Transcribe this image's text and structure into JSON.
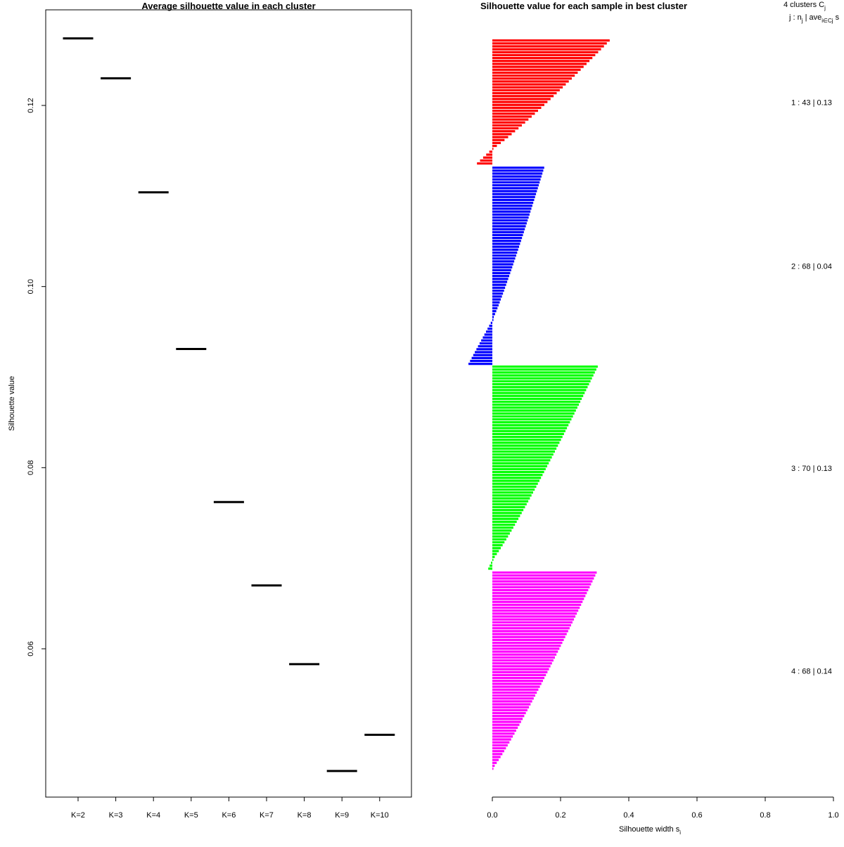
{
  "chart_data": [
    {
      "type": "scatter",
      "title": "Average silhouette value in each cluster",
      "xlabel": "",
      "ylabel": "Silhouette value",
      "categories": [
        "K=2",
        "K=3",
        "K=4",
        "K=5",
        "K=6",
        "K=7",
        "K=8",
        "K=9",
        "K=10"
      ],
      "values": [
        0.1274,
        0.123,
        0.1104,
        0.0931,
        0.0762,
        0.067,
        0.0583,
        0.0465,
        0.0505
      ],
      "y_ticks": [
        0.06,
        0.08,
        0.1,
        0.12
      ],
      "y_tick_labels": [
        "0.06",
        "0.08",
        "0.10",
        "0.12"
      ],
      "ylim": [
        0.0455,
        0.1305
      ],
      "grid": false,
      "mark": "horizontal-segment"
    },
    {
      "type": "bar",
      "orientation": "horizontal",
      "title": "Silhouette value for each sample in best cluster",
      "xlabel": "Silhouette width s",
      "xlabel_subscript": "i",
      "xlim": [
        0,
        1
      ],
      "x_ticks": [
        0.0,
        0.2,
        0.4,
        0.6,
        0.8,
        1.0
      ],
      "x_tick_labels": [
        "0.0",
        "0.2",
        "0.4",
        "0.6",
        "0.8",
        "1.0"
      ],
      "legend_header": {
        "line1": "4  clusters  C",
        "line1_sub": "j",
        "line2_pre": "j :  n",
        "line2_sub_n": "j",
        "line2_mid": " | ave",
        "line2_sub_ave": "i∈Cj",
        "line2_post": "  s"
      },
      "clusters": [
        {
          "id": 1,
          "n": 43,
          "avg": "0.13",
          "label": "1 :   43  |  0.13",
          "color": "#ff0000",
          "max": 0.34,
          "pos_count": 38,
          "min": -0.045,
          "neg_count": 5
        },
        {
          "id": 2,
          "n": 68,
          "avg": "0.04",
          "label": "2 :   68  |  0.04",
          "color": "#0000ff",
          "max": 0.148,
          "pos_count": 53,
          "min": -0.07,
          "neg_count": 15
        },
        {
          "id": 3,
          "n": 70,
          "avg": "0.13",
          "label": "3 :   70  |  0.13",
          "color": "#00ff00",
          "max": 0.305,
          "pos_count": 67,
          "min": -0.012,
          "neg_count": 3
        },
        {
          "id": 4,
          "n": 68,
          "avg": "0.14",
          "label": "4 :   68  |  0.14",
          "color": "#ff00ff",
          "max": 0.302,
          "pos_count": 68,
          "min": 0,
          "neg_count": 0
        }
      ]
    }
  ]
}
